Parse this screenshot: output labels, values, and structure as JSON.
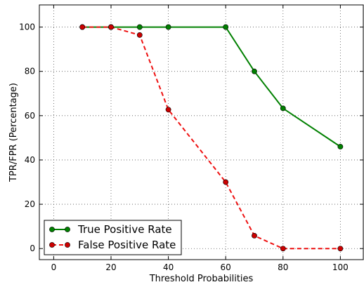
{
  "chart_data": {
    "type": "line",
    "xlabel": "Threshold Probabilities",
    "ylabel": "TPR/FPR (Percentage)",
    "xlim": [
      -5,
      108
    ],
    "ylim": [
      -5,
      110
    ],
    "xticks": [
      0,
      20,
      40,
      60,
      80,
      100
    ],
    "yticks": [
      0,
      20,
      40,
      60,
      80,
      100
    ],
    "grid": true,
    "legend_position": "bottom-left",
    "series": [
      {
        "name": "True Positive Rate",
        "color": "#008000",
        "line_style": "solid",
        "x": [
          10,
          20,
          30,
          40,
          60,
          70,
          80,
          100
        ],
        "y": [
          100,
          100,
          100,
          100,
          100,
          80,
          63.3,
          46
        ]
      },
      {
        "name": "False Positive Rate",
        "color": "#ee1111",
        "marker_color": "#cc0000",
        "line_style": "dashed",
        "x": [
          10,
          20,
          30,
          40,
          60,
          70,
          80,
          100
        ],
        "y": [
          100,
          100,
          96.4,
          62.7,
          30,
          5.8,
          0,
          0
        ]
      }
    ]
  }
}
